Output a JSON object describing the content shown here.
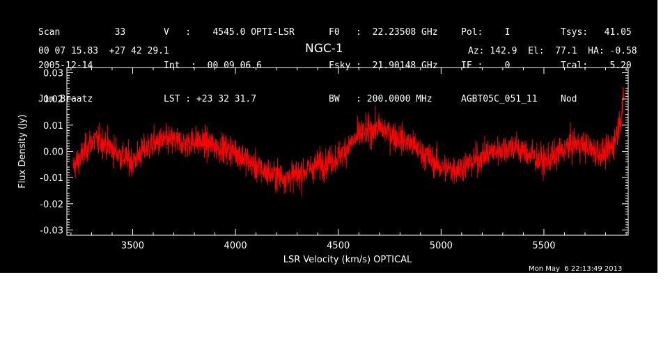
{
  "header": {
    "col1": [
      "Scan          33",
      "2005-12-14",
      "Jim Braatz"
    ],
    "col2": [
      "V   :    4545.0 OPTI-LSR",
      "Int  :  00 09 06.6",
      "LST : +23 32 31.7"
    ],
    "col3": [
      "F0   :  22.23508 GHz",
      "Fsky :  21.90148 GHz",
      "BW   : 200.0000 MHz"
    ],
    "col4": [
      "Pol:    I",
      "IF :    0",
      "AGBT05C_051_11"
    ],
    "col5": [
      "Tsys:   41.05",
      "Tcal:    5.20",
      "Nod"
    ],
    "coords": "00 07 15.83  +27 42 29.1",
    "source": "NGC-1",
    "azel": "Az: 142.9  El:  77.1  HA: -0.58"
  },
  "timestamp": "Mon May  6 22:13:49 2013",
  "colors": {
    "background": "#000000",
    "trace": "#ff0000",
    "axes": "#ffffff",
    "page": "#ffffff"
  },
  "chart_data": {
    "type": "line",
    "title": "NGC-1",
    "xlabel": "LSR Velocity (km/s) OPTICAL",
    "ylabel": "Flux Density (Jy)",
    "xlim": [
      3180,
      5910
    ],
    "ylim": [
      -0.032,
      0.032
    ],
    "xticks": [
      3500,
      4000,
      4500,
      5000,
      5500
    ],
    "xtick_labels": [
      "3500",
      "4000",
      "4500",
      "5000",
      "5500"
    ],
    "yticks": [
      -0.03,
      -0.02,
      -0.01,
      0.0,
      0.01,
      0.02,
      0.03
    ],
    "ytick_labels": [
      "-0.03",
      "-0.02",
      "-0.01",
      "0.00",
      "0.01",
      "0.02",
      "0.03"
    ],
    "grid": false,
    "series": [
      {
        "baseline_x": [
          3210,
          3250,
          3300,
          3350,
          3400,
          3450,
          3500,
          3550,
          3600,
          3650,
          3700,
          3750,
          3800,
          3850,
          3900,
          3950,
          4000,
          4050,
          4100,
          4150,
          4200,
          4250,
          4300,
          4350,
          4400,
          4450,
          4500,
          4550,
          4600,
          4650,
          4700,
          4750,
          4800,
          4850,
          4900,
          4950,
          5000,
          5050,
          5100,
          5150,
          5200,
          5250,
          5300,
          5350,
          5400,
          5450,
          5500,
          5550,
          5600,
          5650,
          5700,
          5750,
          5800,
          5840,
          5870,
          5890
        ],
        "baseline_y": [
          -0.006,
          -0.002,
          0.004,
          0.004,
          0.001,
          -0.002,
          -0.004,
          0.0,
          0.003,
          0.004,
          0.004,
          0.003,
          0.004,
          0.003,
          0.002,
          0.001,
          0.0,
          -0.003,
          -0.006,
          -0.008,
          -0.009,
          -0.01,
          -0.009,
          -0.007,
          -0.005,
          -0.004,
          -0.002,
          0.002,
          0.006,
          0.008,
          0.009,
          0.007,
          0.005,
          0.003,
          0.0,
          -0.003,
          -0.006,
          -0.007,
          -0.006,
          -0.004,
          -0.002,
          0.0,
          0.001,
          0.002,
          0.0,
          -0.002,
          -0.004,
          -0.002,
          0.001,
          0.003,
          0.002,
          0.0,
          -0.001,
          0.003,
          0.012,
          0.02
        ],
        "noise_rms": 0.004
      }
    ]
  }
}
